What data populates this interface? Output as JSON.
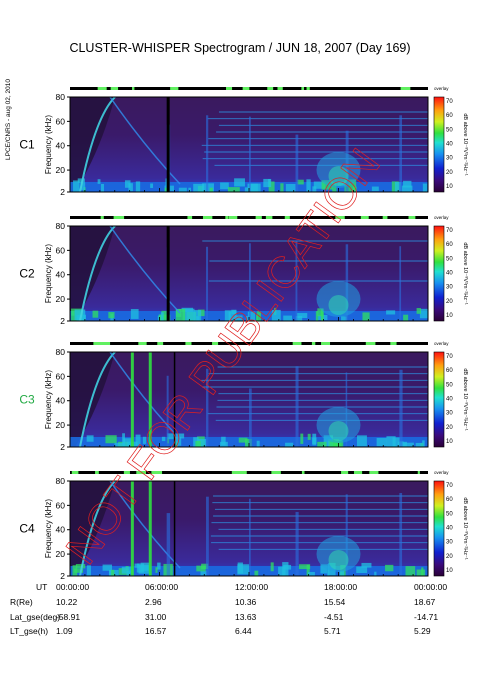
{
  "title": "CLUSTER-WHISPER Spectrogram / JUN 18, 2007 (Day 169)",
  "credit": "LPCE/CNRS - aug 02, 2010",
  "watermark": "NOT FOR PUBLICATION",
  "colorbar": {
    "top_label": "overlay",
    "ticks": [
      "70",
      "60",
      "50",
      "40",
      "30",
      "20",
      "10"
    ],
    "unit": "dB above 10⁻⁸V²m⁻²Hz⁻¹"
  },
  "ylabel": "Frequency (kHz)",
  "yticks": [
    "80",
    "60",
    "40",
    "20",
    "2"
  ],
  "panels": [
    {
      "name": "C1",
      "color": "#000000"
    },
    {
      "name": "C2",
      "color": "#000000"
    },
    {
      "name": "C3",
      "color": "#22aa44"
    },
    {
      "name": "C4",
      "color": "#000000"
    }
  ],
  "ephemeris": {
    "row_labels": [
      "UT",
      "R(Re)",
      "Lat_gse(deg)",
      "LT_gse(h)"
    ],
    "columns": [
      [
        "00:00:00",
        "10.22",
        "-58.91",
        "1.09"
      ],
      [
        "06:00:00",
        "2.96",
        "31.00",
        "16.57"
      ],
      [
        "12:00:00",
        "10.36",
        "13.63",
        "6.44"
      ],
      [
        "18:00:00",
        "15.54",
        "-4.51",
        "5.71"
      ],
      [
        "00:00:00",
        "18.67",
        "-14.71",
        "5.29"
      ]
    ]
  },
  "chart_data": {
    "type": "heatmap",
    "title": "CLUSTER-WHISPER Spectrogram / JUN 18, 2007 (Day 169)",
    "ylabel": "Frequency (kHz)",
    "ylim": [
      2,
      80
    ],
    "xlim": [
      "00:00:00",
      "00:00:00 (+1 day)"
    ],
    "x_ticks": [
      "00:00:00",
      "06:00:00",
      "12:00:00",
      "18:00:00",
      "00:00:00"
    ],
    "color_scale": {
      "min": 10,
      "max": 70,
      "unit": "dB above 10^-8 V^2 m^-2 Hz^-1"
    },
    "series": [
      {
        "name": "C1"
      },
      {
        "name": "C2"
      },
      {
        "name": "C3"
      },
      {
        "name": "C4"
      }
    ]
  }
}
